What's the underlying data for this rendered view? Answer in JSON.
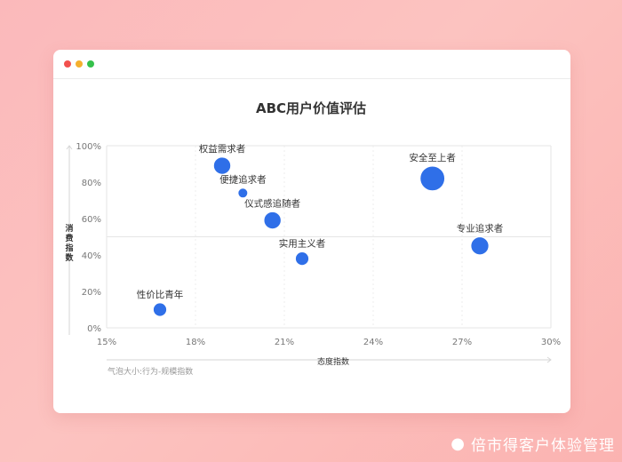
{
  "window": {
    "controls": [
      "close",
      "minimize",
      "maximize"
    ],
    "control_colors": [
      "#f2514e",
      "#f5b02e",
      "#35c14b"
    ]
  },
  "chart_data": {
    "type": "scatter",
    "title": "ABC用户价值评估",
    "xlabel": "态度指数",
    "ylabel": "消费指数",
    "xlim": [
      15,
      30
    ],
    "ylim": [
      0,
      100
    ],
    "x_ticks": [
      15,
      18,
      21,
      24,
      27,
      30
    ],
    "y_ticks": [
      0,
      20,
      40,
      60,
      80,
      100
    ],
    "x_tick_labels": [
      "15%",
      "18%",
      "21%",
      "24%",
      "27%",
      "30%"
    ],
    "y_tick_labels": [
      "0%",
      "20%",
      "40%",
      "60%",
      "80%",
      "100%"
    ],
    "note": "气泡大小:行为-规模指数",
    "bubble_color": "#2f6fe8",
    "points": [
      {
        "label": "权益需求者",
        "x": 18.9,
        "y": 89,
        "size": 3
      },
      {
        "label": "便捷追求者",
        "x": 19.6,
        "y": 74,
        "size": 1
      },
      {
        "label": "仪式感追随者",
        "x": 20.6,
        "y": 59,
        "size": 3
      },
      {
        "label": "实用主义者",
        "x": 21.6,
        "y": 38,
        "size": 2
      },
      {
        "label": "性价比青年",
        "x": 16.8,
        "y": 10,
        "size": 2
      },
      {
        "label": "安全至上者",
        "x": 26.0,
        "y": 82,
        "size": 5
      },
      {
        "label": "专业追求者",
        "x": 27.6,
        "y": 45,
        "size": 3.2
      }
    ]
  },
  "watermark": {
    "icon": "weibo-icon",
    "text": "倍市得客户体验管理"
  }
}
